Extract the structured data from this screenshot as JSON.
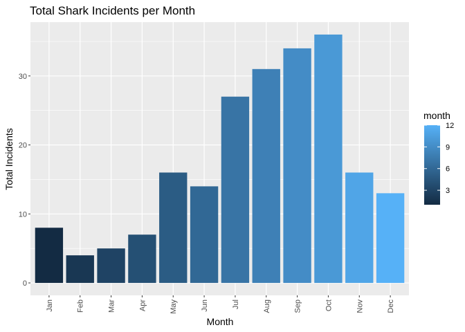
{
  "chart_data": {
    "type": "bar",
    "title": "Total Shark Incidents per Month",
    "xlabel": "Month",
    "ylabel": "Total Incidents",
    "categories": [
      "Jan",
      "Feb",
      "Mar",
      "Apr",
      "May",
      "Jun",
      "Jul",
      "Aug",
      "Sep",
      "Oct",
      "Nov",
      "Dec"
    ],
    "values": [
      8,
      4,
      5,
      7,
      16,
      14,
      27,
      31,
      34,
      36,
      16,
      13
    ],
    "fill_variable": [
      1,
      2,
      3,
      4,
      5,
      6,
      7,
      8,
      9,
      10,
      11,
      12
    ],
    "ylim": [
      -1.8,
      37.8
    ],
    "yticks": [
      0,
      10,
      20,
      30
    ],
    "grid": true,
    "legend": {
      "title": "month",
      "position": "right",
      "ticks": [
        3,
        6,
        9,
        12
      ],
      "range": [
        1,
        12
      ]
    },
    "colors": {
      "low": "#132B43",
      "high": "#56B1F7",
      "panel_background": "#EBEBEB",
      "grid": "#FFFFFF"
    }
  }
}
